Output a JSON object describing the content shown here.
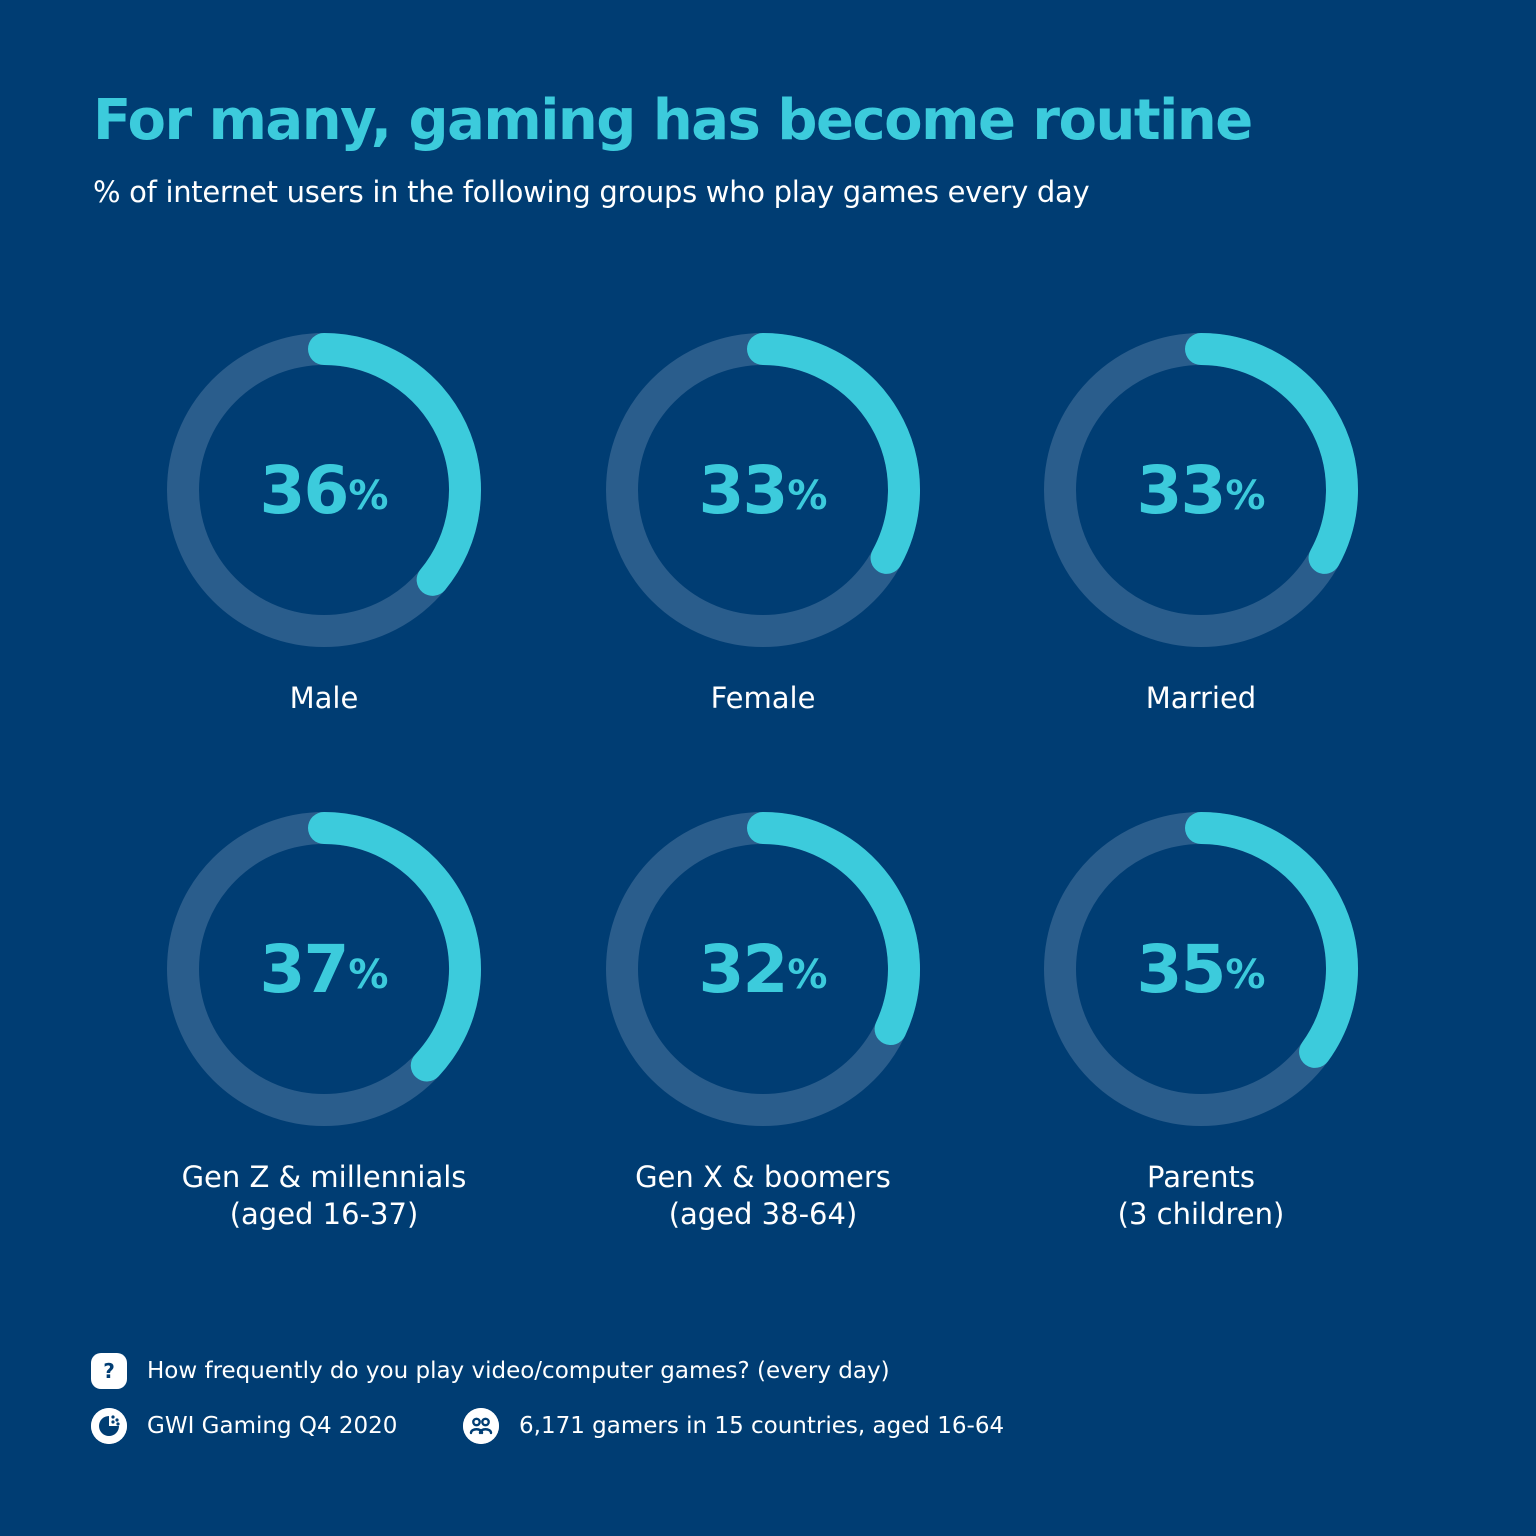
{
  "chart_data": {
    "type": "donut",
    "title": "For many, gaming has become routine",
    "subtitle": "% of internet users in the following groups who play games every day",
    "unit": "%",
    "categories": [
      {
        "label": "Male",
        "sublabel": "",
        "value": 36
      },
      {
        "label": "Female",
        "sublabel": "",
        "value": 33
      },
      {
        "label": "Married",
        "sublabel": "",
        "value": 33
      },
      {
        "label": "Gen Z & millennials",
        "sublabel": "(aged 16-37)",
        "value": 37
      },
      {
        "label": "Gen X & boomers",
        "sublabel": "(aged 38-64)",
        "value": 32
      },
      {
        "label": "Parents",
        "sublabel": "(3 children)",
        "value": 35
      }
    ],
    "ylim": [
      0,
      100
    ]
  },
  "colors": {
    "background": "#003d73",
    "accent": "#3ccbdc",
    "track": "#2a5d8c",
    "text": "#ffffff"
  },
  "footer": {
    "question": {
      "icon": "question-icon",
      "glyph": "?",
      "text": "How frequently do you play video/computer games? (every day)"
    },
    "source": {
      "icon": "gwi-logo-icon",
      "text": "GWI Gaming Q4 2020"
    },
    "sample": {
      "icon": "people-icon",
      "text": "6,171 gamers in 15 countries, aged 16-64"
    }
  }
}
